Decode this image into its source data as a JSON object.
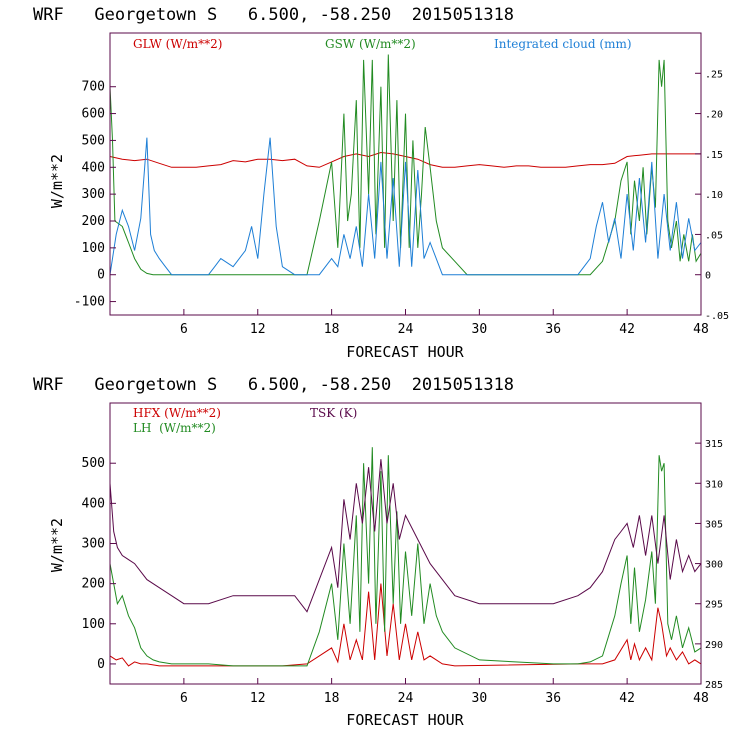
{
  "chart_data": [
    {
      "type": "line",
      "title": "WRF   Georgetown S   6.500, -58.250  2015051318",
      "xlabel": "FORECAST HOUR",
      "ylabel": "W/m**2",
      "xlim": [
        0,
        48
      ],
      "ylim": [
        -150,
        900
      ],
      "y2lim": [
        -0.05,
        0.3
      ],
      "xticks": [
        6,
        12,
        18,
        24,
        30,
        36,
        42,
        48
      ],
      "xtick_labels": [
        "6",
        "12",
        "18",
        "24",
        "30",
        "36",
        "42",
        "48"
      ],
      "yticks": [
        -100,
        0,
        100,
        200,
        300,
        400,
        500,
        600,
        700
      ],
      "ytick_labels": [
        "-100",
        "0",
        "100",
        "200",
        "300",
        "400",
        "500",
        "600",
        "700"
      ],
      "y2ticks": [
        -0.05,
        0,
        0.05,
        0.1,
        0.15,
        0.2,
        0.25
      ],
      "y2tick_labels": [
        "-.05",
        "0",
        ".05",
        ".10",
        ".15",
        ".20",
        ".25"
      ],
      "series": [
        {
          "name": "GLW (W/m**2)",
          "color": "#cc0000",
          "axis": "left",
          "x": [
            0,
            0.5,
            1,
            2,
            3,
            4,
            5,
            6,
            7,
            8,
            9,
            10,
            11,
            12,
            13,
            14,
            15,
            16,
            17,
            18,
            19,
            20,
            21,
            22,
            23,
            24,
            25,
            26,
            27,
            28,
            29,
            30,
            31,
            32,
            33,
            34,
            35,
            36,
            37,
            38,
            39,
            40,
            41,
            42,
            43,
            44,
            45,
            46,
            47,
            48
          ],
          "y": [
            440,
            435,
            430,
            425,
            430,
            415,
            400,
            400,
            400,
            405,
            410,
            425,
            420,
            430,
            430,
            425,
            430,
            405,
            400,
            420,
            440,
            450,
            440,
            455,
            450,
            440,
            430,
            410,
            400,
            400,
            405,
            410,
            405,
            400,
            405,
            405,
            400,
            400,
            400,
            405,
            410,
            410,
            415,
            440,
            445,
            450,
            450,
            450,
            450,
            450
          ]
        },
        {
          "name": "GSW (W/m**2)",
          "color": "#228b22",
          "axis": "left",
          "x": [
            0,
            0.2,
            0.4,
            1,
            1.5,
            2,
            2.5,
            3,
            3.5,
            4,
            16,
            17,
            18,
            18.5,
            19,
            19.3,
            19.6,
            20,
            20.3,
            20.6,
            21,
            21.3,
            21.6,
            22,
            22.3,
            22.6,
            23,
            23.3,
            23.6,
            24,
            24.3,
            24.6,
            25,
            25.3,
            25.6,
            26,
            26.5,
            27,
            28,
            29,
            39,
            40,
            41,
            41.5,
            42,
            42.3,
            42.6,
            43,
            43.3,
            43.6,
            44,
            44.3,
            44.6,
            44.8,
            45,
            45.3,
            45.6,
            46,
            46.3,
            46.6,
            47,
            47.3,
            47.6,
            48
          ],
          "y": [
            700,
            500,
            200,
            180,
            120,
            60,
            20,
            5,
            0,
            0,
            0,
            200,
            420,
            100,
            600,
            200,
            300,
            650,
            100,
            800,
            300,
            800,
            150,
            700,
            100,
            820,
            200,
            650,
            100,
            600,
            100,
            500,
            100,
            300,
            550,
            400,
            200,
            100,
            50,
            0,
            0,
            50,
            200,
            350,
            420,
            150,
            350,
            200,
            400,
            150,
            400,
            250,
            800,
            700,
            800,
            200,
            100,
            200,
            50,
            150,
            50,
            150,
            50,
            80
          ]
        },
        {
          "name": "Integrated cloud (mm)",
          "color": "#1e7fd6",
          "axis": "right",
          "x": [
            0,
            0.5,
            1,
            1.5,
            2,
            2.5,
            3,
            3.3,
            3.6,
            4,
            4.5,
            5,
            6,
            8,
            8.5,
            9,
            10,
            11,
            11.5,
            12,
            12.5,
            13,
            13.5,
            14,
            15,
            16,
            17,
            18,
            18.5,
            19,
            19.5,
            20,
            20.5,
            21,
            21.5,
            22,
            22.5,
            23,
            23.5,
            24,
            24.5,
            25,
            25.5,
            26,
            27,
            38,
            39,
            39.5,
            40,
            40.5,
            41,
            41.5,
            42,
            42.5,
            43,
            43.5,
            44,
            44.5,
            45,
            45.5,
            46,
            46.5,
            47,
            47.5,
            48
          ],
          "y": [
            0,
            0.05,
            0.08,
            0.06,
            0.03,
            0.07,
            0.17,
            0.05,
            0.03,
            0.02,
            0.01,
            0,
            0,
            0,
            0.01,
            0.02,
            0.01,
            0.03,
            0.06,
            0.02,
            0.1,
            0.17,
            0.06,
            0.01,
            0,
            0,
            0,
            0.02,
            0.01,
            0.05,
            0.02,
            0.06,
            0.01,
            0.1,
            0.02,
            0.14,
            0.02,
            0.12,
            0.01,
            0.14,
            0.01,
            0.13,
            0.02,
            0.04,
            0,
            0,
            0.02,
            0.06,
            0.09,
            0.04,
            0.07,
            0.02,
            0.1,
            0.03,
            0.12,
            0.04,
            0.14,
            0.02,
            0.1,
            0.03,
            0.09,
            0.02,
            0.07,
            0.03,
            0.04
          ]
        }
      ]
    },
    {
      "type": "line",
      "title": "WRF   Georgetown S   6.500, -58.250  2015051318",
      "xlabel": "FORECAST HOUR",
      "ylabel": "W/m**2",
      "xlim": [
        0,
        48
      ],
      "ylim": [
        -50,
        650
      ],
      "y2lim": [
        285,
        320
      ],
      "xticks": [
        6,
        12,
        18,
        24,
        30,
        36,
        42,
        48
      ],
      "xtick_labels": [
        "6",
        "12",
        "18",
        "24",
        "30",
        "36",
        "42",
        "48"
      ],
      "yticks": [
        0,
        100,
        200,
        300,
        400,
        500
      ],
      "ytick_labels": [
        "0",
        "100",
        "200",
        "300",
        "400",
        "500"
      ],
      "y2ticks": [
        285,
        290,
        295,
        300,
        305,
        310,
        315
      ],
      "y2tick_labels": [
        "285",
        "290",
        "295",
        "300",
        "305",
        "310",
        "315"
      ],
      "series": [
        {
          "name": "HFX (W/m**2)",
          "color": "#cc0000",
          "axis": "left",
          "x": [
            0,
            0.5,
            1,
            1.5,
            2,
            2.5,
            3,
            4,
            5,
            6,
            8,
            10,
            12,
            14,
            16,
            17,
            18,
            18.5,
            19,
            19.5,
            20,
            20.5,
            21,
            21.5,
            22,
            22.5,
            23,
            23.5,
            24,
            24.5,
            25,
            25.5,
            26,
            27,
            28,
            38,
            40,
            41,
            42,
            42.3,
            42.6,
            43,
            43.5,
            44,
            44.5,
            44.8,
            45.2,
            45.5,
            46,
            46.5,
            47,
            47.5,
            48
          ],
          "y": [
            20,
            10,
            15,
            -5,
            5,
            0,
            0,
            -5,
            -5,
            -5,
            -5,
            -5,
            -5,
            -5,
            0,
            20,
            40,
            5,
            100,
            10,
            60,
            10,
            180,
            10,
            200,
            20,
            150,
            10,
            100,
            10,
            80,
            10,
            20,
            0,
            -5,
            0,
            0,
            10,
            60,
            10,
            50,
            10,
            40,
            10,
            140,
            100,
            20,
            40,
            10,
            30,
            0,
            10,
            0
          ]
        },
        {
          "name": "LH  (W/m**2)",
          "color": "#228b22",
          "axis": "left",
          "x": [
            0,
            0.3,
            0.6,
            1,
            1.5,
            2,
            2.5,
            3,
            3.5,
            4,
            5,
            6,
            8,
            10,
            12,
            14,
            16,
            17,
            18,
            18.5,
            19,
            19.5,
            20,
            20.3,
            20.6,
            21,
            21.3,
            21.6,
            22,
            22.3,
            22.6,
            23,
            23.3,
            23.6,
            24,
            24.5,
            25,
            25.5,
            26,
            26.5,
            27,
            28,
            30,
            36,
            38,
            39,
            40,
            41,
            41.5,
            42,
            42.3,
            42.6,
            43,
            43.5,
            44,
            44.3,
            44.6,
            44.8,
            45,
            45.3,
            45.6,
            46,
            46.5,
            47,
            47.5,
            48
          ],
          "y": [
            250,
            200,
            150,
            170,
            120,
            90,
            40,
            20,
            10,
            5,
            0,
            0,
            0,
            -5,
            -5,
            -5,
            -5,
            80,
            200,
            60,
            300,
            100,
            370,
            80,
            500,
            200,
            540,
            100,
            480,
            80,
            520,
            150,
            380,
            100,
            280,
            120,
            300,
            100,
            200,
            120,
            80,
            40,
            10,
            0,
            0,
            5,
            20,
            120,
            200,
            270,
            100,
            240,
            80,
            160,
            280,
            150,
            520,
            480,
            500,
            100,
            60,
            120,
            40,
            90,
            30,
            40
          ]
        },
        {
          "name": "TSK (K)",
          "color": "#5a0a4a",
          "axis": "right",
          "x": [
            0,
            0.3,
            0.6,
            1,
            2,
            3,
            4,
            5,
            6,
            8,
            10,
            12,
            14,
            15,
            16,
            17,
            18,
            18.5,
            19,
            19.5,
            20,
            20.5,
            21,
            21.5,
            22,
            22.5,
            23,
            23.5,
            24,
            25,
            26,
            27,
            28,
            30,
            33,
            36,
            38,
            39,
            40,
            41,
            41.5,
            42,
            42.5,
            43,
            43.5,
            44,
            44.5,
            45,
            45.5,
            46,
            46.5,
            47,
            47.5,
            48
          ],
          "y": [
            310,
            304,
            302,
            301,
            300,
            298,
            297,
            296,
            295,
            295,
            296,
            296,
            296,
            296,
            294,
            298,
            302,
            297,
            308,
            303,
            310,
            305,
            312,
            304,
            313,
            305,
            310,
            303,
            306,
            303,
            300,
            298,
            296,
            295,
            295,
            295,
            296,
            297,
            299,
            303,
            304,
            305,
            302,
            306,
            301,
            306,
            300,
            306,
            298,
            303,
            299,
            301,
            299,
            300
          ]
        }
      ]
    }
  ]
}
